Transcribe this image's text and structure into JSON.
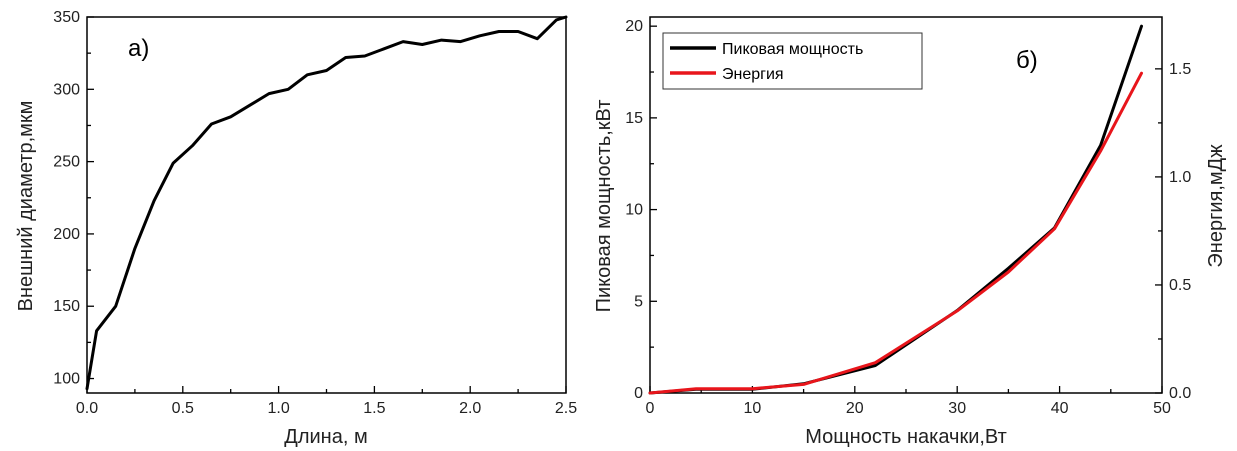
{
  "chart_data": [
    {
      "type": "line",
      "panel_label": "а)",
      "xlabel": "Длина, м",
      "ylabel": "Внешний диаметр,мкм",
      "xlim": [
        0,
        2.5
      ],
      "ylim": [
        90,
        350
      ],
      "xticks": [
        "0.0",
        "0.5",
        "1.0",
        "1.5",
        "2.0",
        "2.5"
      ],
      "yticks": [
        "100",
        "150",
        "200",
        "250",
        "300",
        "350"
      ],
      "grid": false,
      "series": [
        {
          "color": "#000000",
          "x": [
            0.0,
            0.05,
            0.15,
            0.25,
            0.35,
            0.45,
            0.55,
            0.65,
            0.75,
            0.85,
            0.95,
            1.05,
            1.15,
            1.25,
            1.35,
            1.45,
            1.55,
            1.65,
            1.75,
            1.85,
            1.95,
            2.05,
            2.15,
            2.25,
            2.35,
            2.45,
            2.5
          ],
          "y": [
            93,
            133,
            150,
            190,
            223,
            249,
            261,
            276,
            281,
            289,
            297,
            300,
            310,
            313,
            322,
            323,
            328,
            333,
            331,
            334,
            333,
            337,
            340,
            340,
            335,
            348,
            350
          ]
        }
      ]
    },
    {
      "type": "line",
      "panel_label": "б)",
      "xlabel": "Мощность накачки,Вт",
      "ylabel": "Пиковая мощность,кВт",
      "ylabel_right": "Энергия,мДж",
      "xlim": [
        0,
        50
      ],
      "ylim": [
        0,
        20.5
      ],
      "ylim_right": [
        0,
        1.74
      ],
      "xticks": [
        "0",
        "10",
        "20",
        "30",
        "40",
        "50"
      ],
      "yticks": [
        "0",
        "5",
        "10",
        "15",
        "20"
      ],
      "yticks_right": [
        "0.0",
        "0.5",
        "1.0",
        "1.5"
      ],
      "grid": false,
      "legend_position": "top-left",
      "series": [
        {
          "name": "Пиковая мощность",
          "color": "#000000",
          "axis": "left",
          "x": [
            0,
            4.5,
            10,
            15,
            22,
            30,
            35,
            39.5,
            44,
            48
          ],
          "y": [
            0,
            0.2,
            0.2,
            0.5,
            1.5,
            4.5,
            6.8,
            9.0,
            13.5,
            20.0
          ]
        },
        {
          "name": "Энергия",
          "color": "#e8151b",
          "axis": "right",
          "x": [
            0,
            4.5,
            10,
            15,
            22,
            30,
            35,
            39.5,
            44,
            48
          ],
          "y": [
            0,
            0.02,
            0.02,
            0.04,
            0.14,
            0.38,
            0.56,
            0.76,
            1.12,
            1.48
          ]
        }
      ]
    }
  ]
}
